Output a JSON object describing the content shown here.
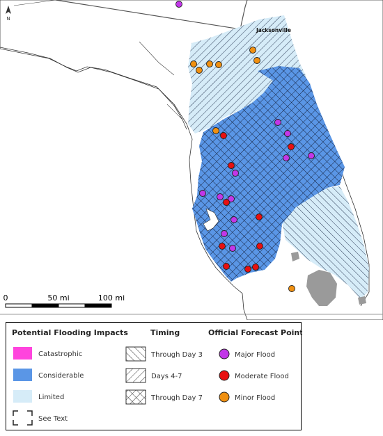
{
  "map": {
    "north_label": "N",
    "city_label": "Jacksonville",
    "scale_labels": [
      "0",
      "50 mi",
      "100 mi"
    ]
  },
  "forecast_points": {
    "major": [
      [
        257,
        6
      ],
      [
        399,
        176
      ],
      [
        413,
        192
      ],
      [
        447,
        224
      ],
      [
        411,
        227
      ],
      [
        338,
        249
      ],
      [
        291,
        278
      ],
      [
        316,
        283
      ],
      [
        332,
        286
      ],
      [
        336,
        316
      ],
      [
        322,
        336
      ],
      [
        334,
        357
      ]
    ],
    "moderate": [
      [
        321,
        195
      ],
      [
        418,
        211
      ],
      [
        332,
        238
      ],
      [
        325,
        291
      ],
      [
        372,
        312
      ],
      [
        319,
        354
      ],
      [
        373,
        354
      ],
      [
        325,
        383
      ],
      [
        356,
        387
      ],
      [
        367,
        384
      ]
    ],
    "minor": [
      [
        363,
        72
      ],
      [
        369,
        87
      ],
      [
        278,
        92
      ],
      [
        301,
        92
      ],
      [
        314,
        93
      ],
      [
        286,
        101
      ],
      [
        310,
        188
      ],
      [
        419,
        415
      ]
    ]
  },
  "legend": {
    "impacts_title": "Potential Flooding Impacts",
    "timing_title": "Timing",
    "points_title": "Official Forecast Points",
    "impacts": [
      {
        "label": "Catastrophic",
        "color": "#ff44dd"
      },
      {
        "label": "Considerable",
        "color": "#5a96e6"
      },
      {
        "label": "Limited",
        "color": "#d6ecf8"
      },
      {
        "label": "See Text"
      }
    ],
    "timing": [
      "Through Day 3",
      "Days 4-7",
      "Through Day 7"
    ],
    "points": [
      {
        "label": "Major Flood",
        "color": "#c237e8"
      },
      {
        "label": "Moderate Flood",
        "color": "#e81010"
      },
      {
        "label": "Minor Flood",
        "color": "#f09010"
      }
    ]
  }
}
